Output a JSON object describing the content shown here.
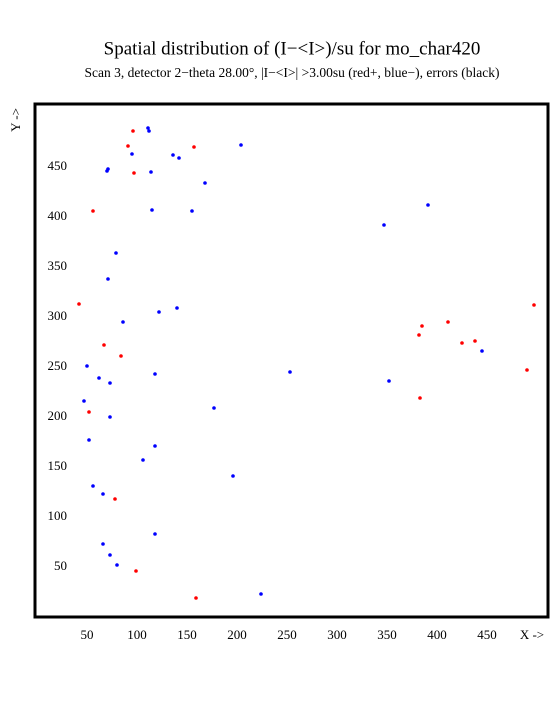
{
  "chart_data": {
    "type": "scatter",
    "title": "Spatial distribution of (I−<I>)/su for mo_char420",
    "subtitle": "Scan  3, detector 2−theta  28.00°, |I−<I>| >3.00su (red+, blue−), errors (black)",
    "xlabel": "X ->",
    "ylabel": "Y ->",
    "xlim": [
      -2,
      511
    ],
    "ylim": [
      0,
      513
    ],
    "xticks": [
      50,
      100,
      150,
      200,
      250,
      300,
      350,
      400,
      450
    ],
    "yticks": [
      50,
      100,
      150,
      200,
      250,
      300,
      350,
      400,
      450
    ],
    "grid": false,
    "series": [
      {
        "color": "#ff0000",
        "x": [
          96,
          91,
          157,
          97,
          56,
          42,
          67,
          84,
          52,
          78,
          99,
          159,
          497,
          411,
          385,
          382,
          425,
          438,
          490,
          383
        ],
        "values": [
          486,
          471,
          470,
          444,
          406,
          313,
          272,
          261,
          205,
          118,
          46,
          19,
          312,
          295,
          291,
          282,
          274,
          276,
          247,
          219
        ]
      },
      {
        "color": "#0000ff",
        "x": [
          111,
          112,
          95,
          136,
          142,
          204,
          71,
          70,
          114,
          168,
          391,
          115,
          155,
          347,
          79,
          71,
          140,
          122,
          86,
          50,
          62,
          73,
          118,
          253,
          352,
          445,
          47,
          177,
          73,
          52,
          118,
          106,
          196,
          56,
          66,
          118,
          66,
          73,
          80,
          224
        ],
        "values": [
          489,
          486,
          463,
          462,
          459,
          472,
          448,
          446,
          445,
          434,
          412,
          407,
          406,
          392,
          364,
          338,
          309,
          305,
          295,
          251,
          239,
          234,
          243,
          245,
          236,
          266,
          216,
          209,
          200,
          177,
          171,
          157,
          141,
          131,
          123,
          83,
          73,
          62,
          52,
          23
        ]
      }
    ]
  }
}
